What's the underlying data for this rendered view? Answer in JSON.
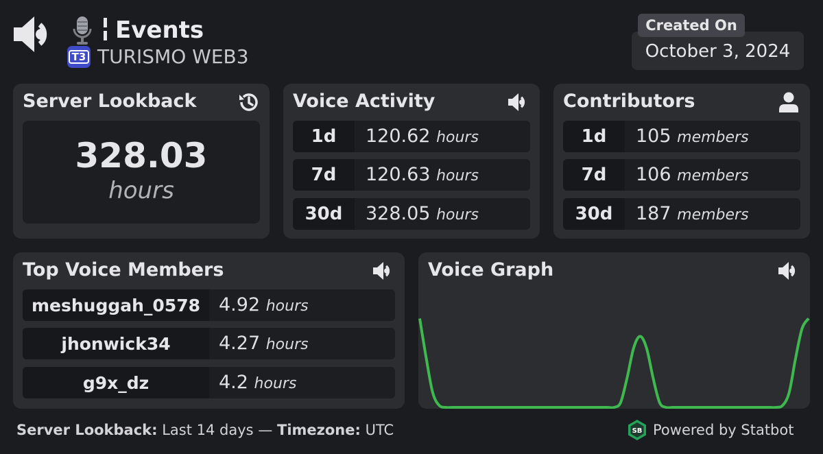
{
  "header": {
    "title": "Events",
    "server_name": "TURISMO WEB3",
    "server_logo_text": "T3",
    "created_label": "Created On",
    "created_date": "October 3, 2024"
  },
  "server_lookback": {
    "title": "Server Lookback",
    "value": "328.03",
    "unit": "hours"
  },
  "voice_activity": {
    "title": "Voice Activity",
    "unit": "hours",
    "rows": [
      {
        "period": "1d",
        "value": "120.62"
      },
      {
        "period": "7d",
        "value": "120.63"
      },
      {
        "period": "30d",
        "value": "328.05"
      }
    ]
  },
  "contributors": {
    "title": "Contributors",
    "unit": "members",
    "rows": [
      {
        "period": "1d",
        "value": "105"
      },
      {
        "period": "7d",
        "value": "106"
      },
      {
        "period": "30d",
        "value": "187"
      }
    ]
  },
  "top_voice_members": {
    "title": "Top Voice Members",
    "unit": "hours",
    "rows": [
      {
        "name": "meshuggah_0578",
        "value": "4.92"
      },
      {
        "name": "jhonwick34",
        "value": "4.27"
      },
      {
        "name": "g9x_dz",
        "value": "4.2"
      }
    ]
  },
  "voice_graph": {
    "title": "Voice Graph",
    "line_color": "#3fb94f"
  },
  "chart_data": {
    "type": "line",
    "title": "Voice Graph",
    "xlabel": "",
    "ylabel": "",
    "grid": false,
    "x": [
      0,
      1,
      2,
      3,
      4,
      5,
      6,
      7,
      8,
      9,
      10,
      11,
      12,
      13,
      14,
      15,
      16,
      17,
      18,
      19,
      20,
      21,
      22,
      23,
      24,
      25,
      26,
      27,
      28,
      29,
      30,
      31,
      32,
      33,
      34,
      35,
      36,
      37,
      38,
      39,
      40,
      41,
      42,
      43,
      44,
      45,
      46,
      47,
      48,
      49,
      50,
      51,
      52,
      53,
      54,
      55,
      56,
      57,
      58,
      59,
      60
    ],
    "series": [
      {
        "values": [
          0.9,
          0.5,
          0.15,
          0.02,
          0,
          0,
          0,
          0,
          0,
          0,
          0,
          0,
          0,
          0,
          0,
          0,
          0,
          0,
          0,
          0,
          0,
          0,
          0,
          0,
          0,
          0,
          0,
          0,
          0,
          0,
          0,
          0.05,
          0.3,
          0.6,
          0.72,
          0.6,
          0.3,
          0.05,
          0,
          0,
          0,
          0,
          0,
          0,
          0,
          0,
          0,
          0,
          0,
          0,
          0,
          0,
          0,
          0,
          0,
          0,
          0.02,
          0.15,
          0.5,
          0.8,
          0.9
        ]
      }
    ],
    "ylim": [
      0,
      1
    ]
  },
  "footer": {
    "lookback_label": "Server Lookback:",
    "lookback_value": "Last 14 days",
    "separator": "—",
    "timezone_label": "Timezone:",
    "timezone_value": "UTC",
    "powered_by": "Powered by Statbot",
    "statbot_logo_text": "SB"
  },
  "colors": {
    "background": "#1b1c1f",
    "panel": "#2c2d31",
    "row": "#1d1e21",
    "row_key": "#17181b",
    "accent_green": "#3fb94f",
    "logo_blue": "#3f4bc8"
  },
  "icons": {
    "header": "speaker-icon",
    "channel": "microphone-icon",
    "lookback": "history-icon",
    "voice": "speaker-icon",
    "contributors": "user-icon"
  }
}
